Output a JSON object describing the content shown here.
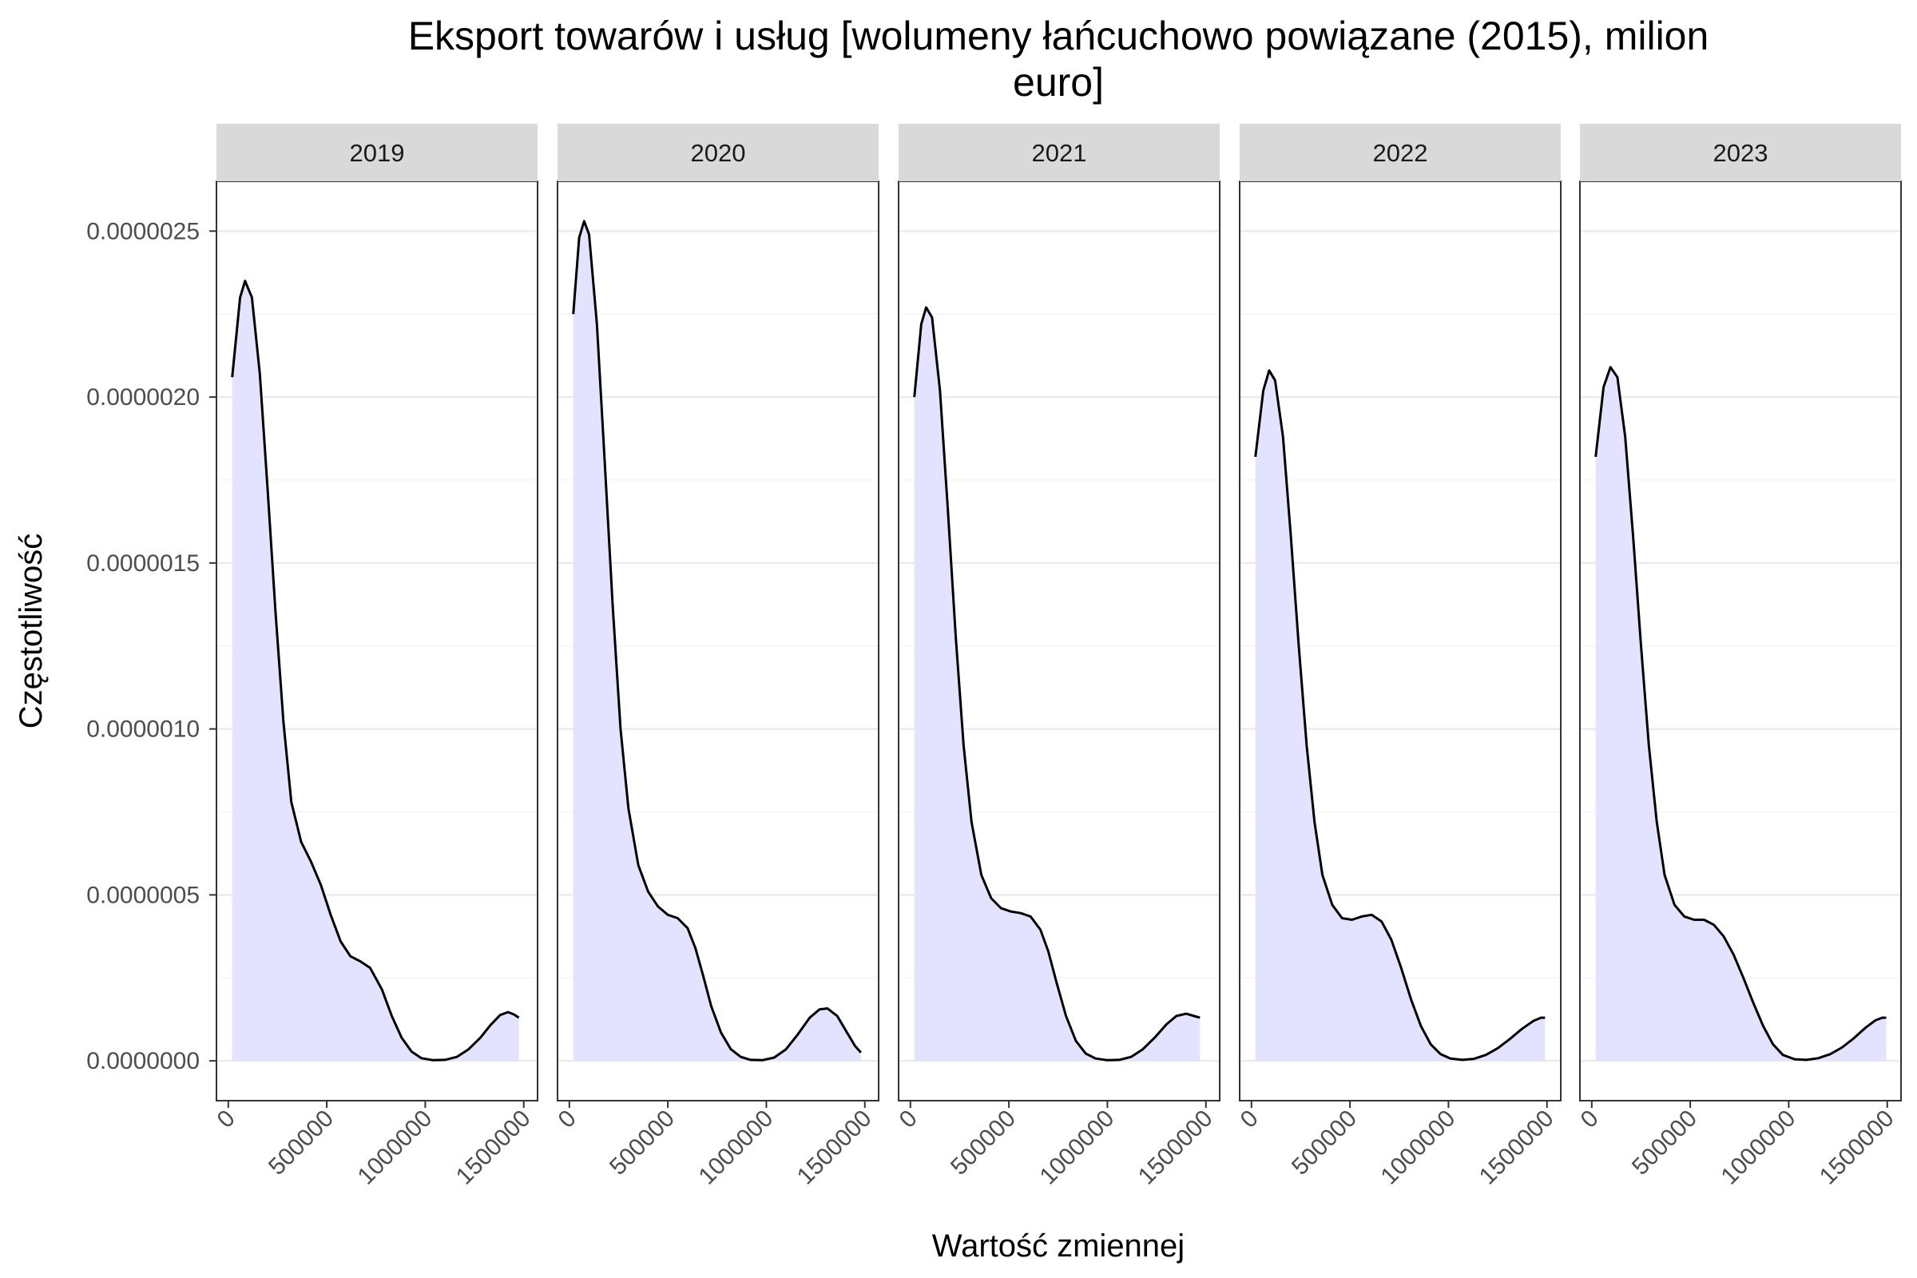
{
  "chart_data": {
    "type": "area",
    "title_lines": [
      "Eksport towarów i usług [wolumeny łańcuchowo powiązane (2015), milion",
      "euro]"
    ],
    "xlabel": "Wartość zmiennej",
    "ylabel": "Częstotliwość",
    "x_ticks": [
      0,
      500000,
      1000000,
      1500000
    ],
    "x_tick_labels": [
      "0",
      "500000",
      "1000000",
      "1500000"
    ],
    "xlim": [
      -60000,
      1570000
    ],
    "y_ticks": [
      0,
      5e-07,
      1e-06,
      1.5e-06,
      2e-06,
      2.5e-06
    ],
    "y_tick_labels": [
      "0.0000000",
      "0.0000005",
      "0.0000010",
      "0.0000015",
      "0.0000020",
      "0.0000025"
    ],
    "ylim": [
      -1.2e-07,
      2.65e-06
    ],
    "grid": true,
    "fill_color": "#e3e3ff",
    "line_color": "#000000",
    "strip_color": "#d9d9d9",
    "panels": [
      {
        "name": "2019",
        "x": [
          20000,
          60000,
          85000,
          120000,
          160000,
          200000,
          240000,
          280000,
          320000,
          370000,
          420000,
          470000,
          520000,
          570000,
          620000,
          670000,
          720000,
          780000,
          830000,
          880000,
          930000,
          980000,
          1040000,
          1100000,
          1160000,
          1220000,
          1280000,
          1330000,
          1380000,
          1420000,
          1450000,
          1475000
        ],
        "y": [
          2.06e-06,
          2.3e-06,
          2.35e-06,
          2.3e-06,
          2.07e-06,
          1.72e-06,
          1.35e-06,
          1.02e-06,
          7.8e-07,
          6.6e-07,
          6e-07,
          5.3e-07,
          4.4e-07,
          3.6e-07,
          3.15e-07,
          3e-07,
          2.8e-07,
          2.15e-07,
          1.35e-07,
          7e-08,
          2.8e-08,
          8e-09,
          2e-09,
          3e-09,
          1.2e-08,
          3.5e-08,
          7e-08,
          1.07e-07,
          1.38e-07,
          1.47e-07,
          1.4e-07,
          1.3e-07
        ]
      },
      {
        "name": "2020",
        "x": [
          20000,
          50000,
          75000,
          100000,
          140000,
          180000,
          220000,
          260000,
          300000,
          350000,
          400000,
          450000,
          500000,
          550000,
          600000,
          640000,
          680000,
          720000,
          770000,
          820000,
          870000,
          920000,
          980000,
          1040000,
          1100000,
          1160000,
          1220000,
          1270000,
          1310000,
          1360000,
          1410000,
          1450000,
          1480000
        ],
        "y": [
          2.25e-06,
          2.48e-06,
          2.53e-06,
          2.49e-06,
          2.22e-06,
          1.8e-06,
          1.37e-06,
          1e-06,
          7.6e-07,
          5.9e-07,
          5.1e-07,
          4.65e-07,
          4.4e-07,
          4.3e-07,
          4e-07,
          3.4e-07,
          2.55e-07,
          1.65e-07,
          8.5e-08,
          3.5e-08,
          1.2e-08,
          3e-09,
          2e-09,
          1e-08,
          3.5e-08,
          8e-08,
          1.3e-07,
          1.55e-07,
          1.58e-07,
          1.35e-07,
          8.5e-08,
          4.5e-08,
          2.5e-08
        ]
      },
      {
        "name": "2021",
        "x": [
          20000,
          55000,
          80000,
          110000,
          150000,
          190000,
          230000,
          270000,
          310000,
          360000,
          410000,
          460000,
          510000,
          560000,
          610000,
          660000,
          700000,
          740000,
          790000,
          840000,
          890000,
          940000,
          1000000,
          1060000,
          1120000,
          1180000,
          1240000,
          1300000,
          1350000,
          1400000,
          1440000,
          1470000
        ],
        "y": [
          2e-06,
          2.22e-06,
          2.27e-06,
          2.24e-06,
          2.02e-06,
          1.66e-06,
          1.28e-06,
          9.5e-07,
          7.2e-07,
          5.6e-07,
          4.9e-07,
          4.6e-07,
          4.5e-07,
          4.45e-07,
          4.35e-07,
          3.95e-07,
          3.3e-07,
          2.4e-07,
          1.35e-07,
          6e-08,
          2.2e-08,
          7e-09,
          2e-09,
          3e-09,
          1.2e-08,
          3.5e-08,
          7e-08,
          1.1e-07,
          1.35e-07,
          1.42e-07,
          1.35e-07,
          1.3e-07
        ]
      },
      {
        "name": "2022",
        "x": [
          20000,
          60000,
          90000,
          120000,
          160000,
          200000,
          240000,
          280000,
          320000,
          360000,
          410000,
          460000,
          510000,
          560000,
          610000,
          660000,
          710000,
          760000,
          810000,
          860000,
          910000,
          960000,
          1010000,
          1070000,
          1130000,
          1190000,
          1250000,
          1310000,
          1370000,
          1430000,
          1470000,
          1490000
        ],
        "y": [
          1.82e-06,
          2.02e-06,
          2.08e-06,
          2.05e-06,
          1.88e-06,
          1.58e-06,
          1.25e-06,
          9.5e-07,
          7.2e-07,
          5.6e-07,
          4.7e-07,
          4.3e-07,
          4.25e-07,
          4.35e-07,
          4.4e-07,
          4.2e-07,
          3.65e-07,
          2.8e-07,
          1.85e-07,
          1.05e-07,
          5e-08,
          2e-08,
          7e-09,
          3e-09,
          6e-09,
          1.8e-08,
          3.8e-08,
          6.5e-08,
          9.5e-08,
          1.2e-07,
          1.3e-07,
          1.3e-07
        ]
      },
      {
        "name": "2023",
        "x": [
          20000,
          60000,
          95000,
          130000,
          170000,
          210000,
          250000,
          290000,
          330000,
          370000,
          420000,
          470000,
          520000,
          570000,
          620000,
          670000,
          720000,
          770000,
          820000,
          870000,
          920000,
          970000,
          1030000,
          1090000,
          1150000,
          1210000,
          1270000,
          1330000,
          1390000,
          1440000,
          1475000,
          1495000
        ],
        "y": [
          1.82e-06,
          2.03e-06,
          2.09e-06,
          2.06e-06,
          1.88e-06,
          1.58e-06,
          1.25e-06,
          9.5e-07,
          7.2e-07,
          5.6e-07,
          4.7e-07,
          4.35e-07,
          4.25e-07,
          4.25e-07,
          4.1e-07,
          3.75e-07,
          3.2e-07,
          2.5e-07,
          1.75e-07,
          1.05e-07,
          5e-08,
          1.8e-08,
          5e-09,
          3e-09,
          8e-09,
          2e-08,
          4e-08,
          6.8e-08,
          1e-07,
          1.22e-07,
          1.3e-07,
          1.3e-07
        ]
      }
    ]
  }
}
